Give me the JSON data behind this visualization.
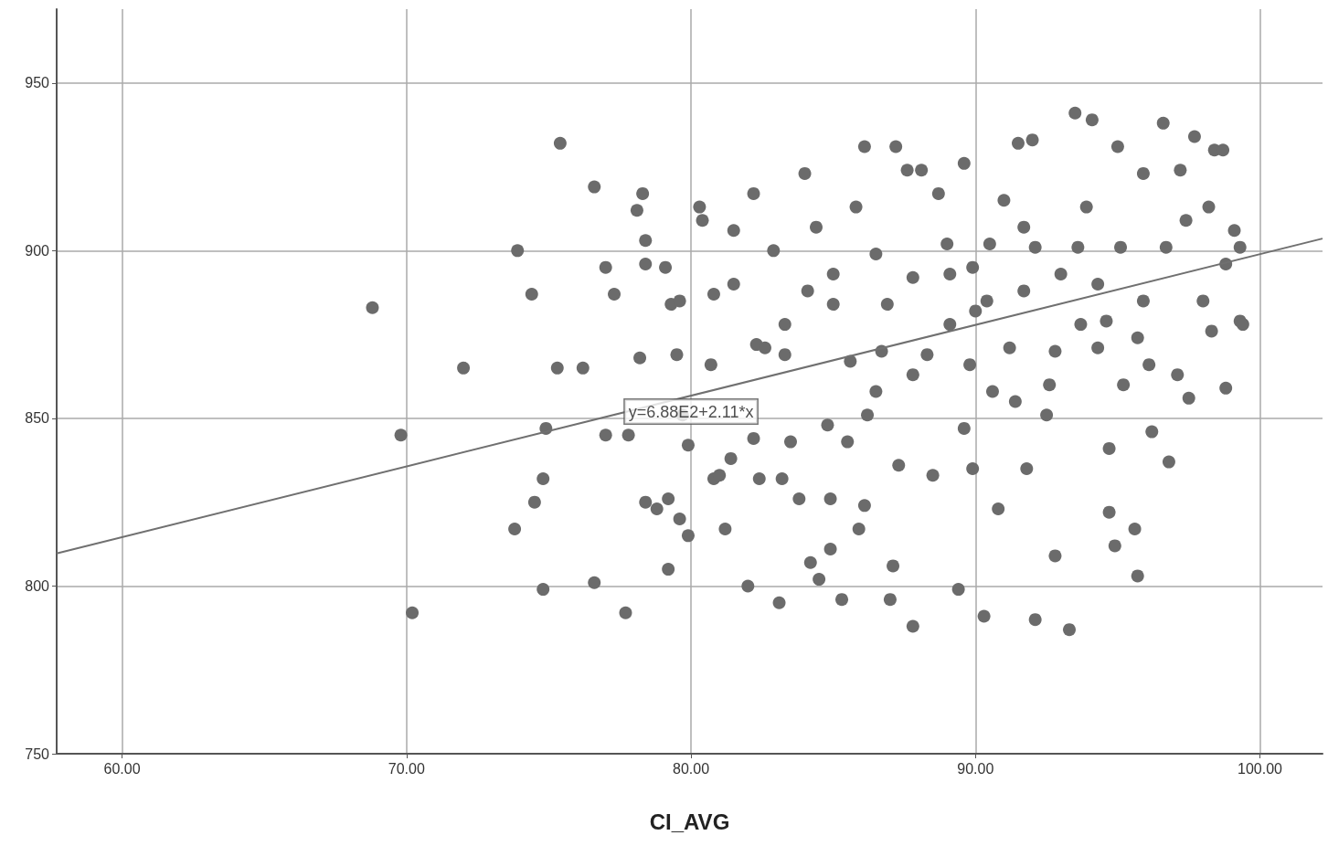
{
  "chart_data": {
    "type": "scatter",
    "xlabel": "CI_AVG",
    "grid": true,
    "xlim": [
      57.7,
      102.2
    ],
    "xticks": [
      {
        "value": 60,
        "label": "60.00"
      },
      {
        "value": 70,
        "label": "70.00"
      },
      {
        "value": 80,
        "label": "80.00"
      },
      {
        "value": 90,
        "label": "90.00"
      },
      {
        "value": 100,
        "label": "100.00"
      }
    ],
    "ylim": [
      750,
      972
    ],
    "yticks": [
      750,
      800,
      850,
      900,
      950
    ],
    "annotations": [
      {
        "text": "y=6.88E2+2.11*x",
        "x": 80,
        "y": 852
      }
    ],
    "series": [
      {
        "marker": "circle",
        "color": "#6b6b6b",
        "x": [
          68.8,
          69.8,
          70.2,
          72.0,
          73.9,
          74.4,
          73.8,
          74.5,
          74.8,
          74.9,
          74.8,
          75.3,
          75.4,
          76.2,
          76.6,
          76.6,
          77.0,
          77.3,
          77.0,
          77.7,
          77.8,
          78.1,
          78.3,
          78.4,
          78.4,
          78.2,
          78.4,
          78.8,
          79.1,
          79.2,
          79.2,
          79.3,
          79.5,
          79.6,
          79.6,
          79.7,
          79.9,
          79.9,
          80.3,
          80.4,
          80.8,
          80.8,
          81.0,
          81.2,
          81.4,
          81.5,
          81.5,
          80.7,
          82.2,
          82.0,
          82.2,
          82.3,
          82.4,
          82.6,
          82.9,
          83.1,
          83.2,
          83.3,
          83.3,
          83.5,
          83.8,
          84.0,
          84.1,
          84.2,
          84.5,
          84.4,
          84.8,
          84.9,
          85.0,
          85.0,
          84.9,
          85.3,
          85.5,
          85.6,
          85.8,
          85.9,
          86.1,
          86.1,
          86.2,
          86.5,
          86.7,
          86.9,
          87.0,
          87.1,
          87.2,
          87.3,
          87.6,
          87.8,
          87.8,
          88.1,
          88.3,
          88.5,
          88.7,
          89.0,
          89.1,
          89.4,
          89.6,
          89.6,
          89.9,
          89.9,
          90.0,
          90.3,
          90.5,
          90.6,
          90.8,
          91.0,
          91.2,
          91.5,
          91.7,
          91.8,
          92.0,
          92.1,
          92.1,
          92.5,
          92.8,
          92.8,
          93.3,
          93.5,
          93.7,
          93.9,
          94.1,
          94.3,
          94.7,
          94.7,
          94.9,
          95.0,
          95.1,
          95.2,
          95.6,
          95.7,
          95.9,
          96.1,
          96.2,
          96.6,
          96.7,
          96.8,
          97.1,
          97.2,
          97.4,
          97.5,
          97.7,
          98.0,
          98.2,
          98.3,
          98.4,
          98.8,
          98.8,
          99.1,
          99.3,
          99.3,
          99.4,
          98.7,
          95.7,
          94.3,
          93.0,
          91.7,
          90.4,
          89.1,
          87.8,
          86.5,
          91.4,
          92.6,
          89.8,
          93.6,
          95.9,
          94.6
        ],
        "values": [
          883,
          845,
          792,
          865,
          900,
          887,
          817,
          825,
          799,
          847,
          832,
          865,
          932,
          865,
          801,
          919,
          895,
          887,
          845,
          792,
          845,
          912,
          917,
          903,
          896,
          868,
          825,
          823,
          895,
          805,
          826,
          884,
          869,
          820,
          885,
          851,
          815,
          842,
          913,
          909,
          887,
          832,
          833,
          817,
          838,
          906,
          890,
          866,
          917,
          800,
          844,
          872,
          832,
          871,
          900,
          795,
          832,
          869,
          878,
          843,
          826,
          923,
          888,
          807,
          802,
          907,
          848,
          826,
          884,
          893,
          811,
          796,
          843,
          867,
          913,
          817,
          931,
          824,
          851,
          899,
          870,
          884,
          796,
          806,
          931,
          836,
          924,
          788,
          892,
          924,
          869,
          833,
          917,
          902,
          878,
          799,
          926,
          847,
          895,
          835,
          882,
          791,
          902,
          858,
          823,
          915,
          871,
          932,
          907,
          835,
          933,
          790,
          901,
          851,
          870,
          809,
          787,
          941,
          878,
          913,
          939,
          890,
          841,
          822,
          812,
          931,
          901,
          860,
          817,
          803,
          923,
          866,
          846,
          938,
          901,
          837,
          863,
          924,
          909,
          856,
          934,
          885,
          913,
          876,
          930,
          859,
          896,
          906,
          901,
          879,
          878,
          930,
          874,
          871,
          893,
          888,
          885,
          893,
          863,
          858,
          855,
          860,
          866,
          901,
          885,
          879
        ]
      },
      {
        "type": "line",
        "marker": "none",
        "color": "#707070",
        "x": [
          57.7,
          102.2
        ],
        "values": [
          809.7,
          903.6
        ]
      }
    ]
  }
}
